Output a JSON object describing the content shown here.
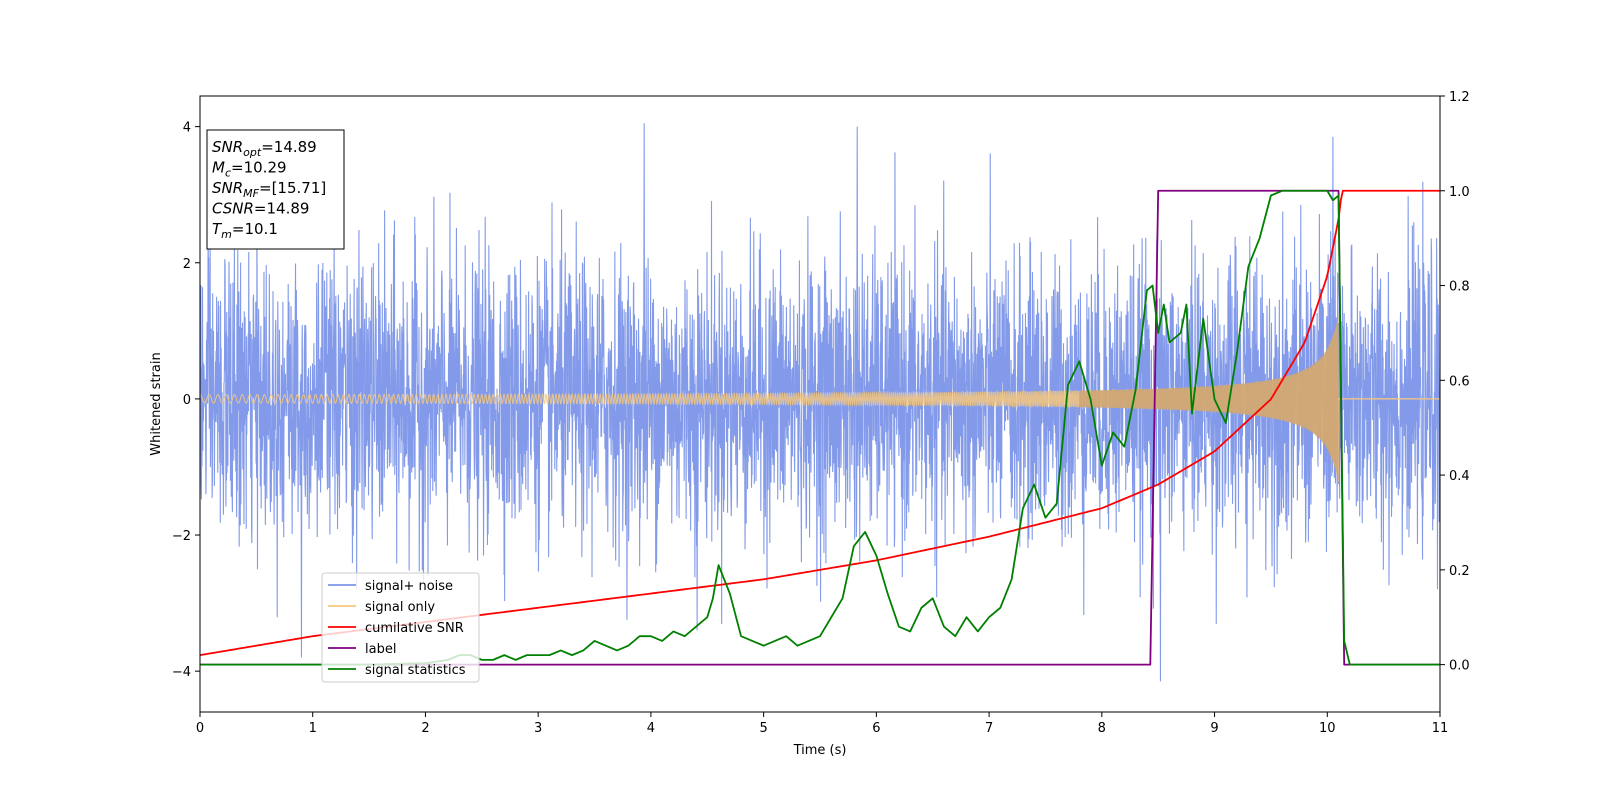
{
  "chart_data": {
    "type": "line",
    "title": "",
    "xlabel": "Time (s)",
    "ylabel": "Whitened strain",
    "xlim": [
      0,
      11
    ],
    "ylim": [
      -4.6,
      4.45
    ],
    "y2lim": [
      -0.1,
      1.2
    ],
    "xticks": [
      0,
      1,
      2,
      3,
      4,
      5,
      6,
      7,
      8,
      9,
      10,
      11
    ],
    "yticks": [
      -4,
      -2,
      0,
      2,
      4
    ],
    "y2ticks": [
      0.0,
      0.2,
      0.4,
      0.6,
      0.8,
      1.0,
      1.2
    ],
    "grid": false,
    "legend_position": "lower-left",
    "annotation": {
      "lines": [
        {
          "name": "SNR",
          "sub": "opt",
          "value": "=14.89"
        },
        {
          "name": "M",
          "sub": "c",
          "value": "=10.29"
        },
        {
          "name": "SNR",
          "sub": "MF",
          "value": "=[15.71]"
        },
        {
          "name": "CSNR",
          "sub": "",
          "value": "=14.89"
        },
        {
          "name": "T",
          "sub": "m",
          "value": "=10.1"
        }
      ]
    },
    "series": [
      {
        "name": "signal+ noise",
        "axis": "left",
        "color": "#7b95e8",
        "noise_std": 1.0,
        "x_range": [
          0,
          11
        ],
        "notable_peaks": [
          {
            "x": 3.94,
            "y": 4.05
          },
          {
            "x": 5.83,
            "y": 4.0
          },
          {
            "x": 10.05,
            "y": 3.85
          },
          {
            "x": 8.52,
            "y": -4.15
          },
          {
            "x": 4.41,
            "y": -3.4
          },
          {
            "x": 0.9,
            "y": -3.8
          }
        ]
      },
      {
        "name": "signal only",
        "axis": "left",
        "color": "#f5c77e",
        "x_range": [
          0,
          11
        ],
        "merger_time": 10.1,
        "amplitude_start": 0.04,
        "amplitude_peak": 1.25,
        "frequency_start": 12,
        "frequency_peak": 60
      },
      {
        "name": "cumilative SNR",
        "axis": "right",
        "color": "#ff0000",
        "x": [
          0,
          1,
          2,
          3,
          4,
          5,
          6,
          7,
          8,
          8.5,
          9,
          9.5,
          9.8,
          10.0,
          10.1,
          10.13,
          11
        ],
        "y": [
          0.02,
          0.06,
          0.09,
          0.12,
          0.15,
          0.18,
          0.22,
          0.27,
          0.33,
          0.38,
          0.45,
          0.56,
          0.68,
          0.82,
          0.94,
          1.0,
          1.0
        ]
      },
      {
        "name": "label",
        "axis": "right",
        "color": "#800080",
        "x": [
          0,
          8.43,
          8.5,
          10.1,
          10.15,
          11
        ],
        "y": [
          0,
          0,
          1,
          1,
          0,
          0
        ]
      },
      {
        "name": "signal statistics",
        "axis": "right",
        "color": "#008000",
        "x": [
          0,
          0.2,
          0.35,
          0.5,
          1.0,
          1.5,
          2.0,
          2.2,
          2.3,
          2.4,
          2.5,
          2.6,
          2.7,
          2.8,
          2.9,
          3.0,
          3.1,
          3.2,
          3.3,
          3.4,
          3.5,
          3.6,
          3.7,
          3.8,
          3.9,
          4.0,
          4.1,
          4.2,
          4.3,
          4.4,
          4.5,
          4.55,
          4.6,
          4.7,
          4.8,
          4.9,
          5.0,
          5.1,
          5.2,
          5.3,
          5.4,
          5.5,
          5.6,
          5.7,
          5.8,
          5.9,
          6.0,
          6.1,
          6.2,
          6.3,
          6.4,
          6.5,
          6.6,
          6.7,
          6.8,
          6.9,
          7.0,
          7.1,
          7.2,
          7.3,
          7.4,
          7.5,
          7.6,
          7.7,
          7.8,
          7.9,
          8.0,
          8.1,
          8.2,
          8.3,
          8.4,
          8.45,
          8.5,
          8.55,
          8.6,
          8.7,
          8.75,
          8.8,
          8.9,
          9.0,
          9.1,
          9.2,
          9.3,
          9.4,
          9.5,
          9.6,
          9.7,
          9.8,
          9.9,
          10.0,
          10.05,
          10.1,
          10.15,
          10.2,
          10.3,
          11.0
        ],
        "y": [
          0.0,
          0.0,
          0.0,
          0.0,
          0.0,
          0.0,
          0.003,
          0.01,
          0.02,
          0.02,
          0.01,
          0.01,
          0.02,
          0.01,
          0.02,
          0.02,
          0.02,
          0.03,
          0.02,
          0.03,
          0.05,
          0.04,
          0.03,
          0.04,
          0.06,
          0.06,
          0.05,
          0.07,
          0.06,
          0.08,
          0.1,
          0.14,
          0.21,
          0.15,
          0.06,
          0.05,
          0.04,
          0.05,
          0.06,
          0.04,
          0.05,
          0.06,
          0.1,
          0.14,
          0.25,
          0.28,
          0.23,
          0.15,
          0.08,
          0.07,
          0.12,
          0.14,
          0.08,
          0.06,
          0.1,
          0.07,
          0.1,
          0.12,
          0.18,
          0.33,
          0.38,
          0.31,
          0.34,
          0.59,
          0.64,
          0.56,
          0.42,
          0.49,
          0.46,
          0.58,
          0.79,
          0.8,
          0.7,
          0.76,
          0.68,
          0.7,
          0.76,
          0.53,
          0.73,
          0.56,
          0.51,
          0.66,
          0.84,
          0.9,
          0.99,
          1.0,
          1.0,
          1.0,
          1.0,
          1.0,
          0.98,
          0.99,
          0.05,
          0.0,
          0.0,
          0.0
        ]
      }
    ]
  }
}
